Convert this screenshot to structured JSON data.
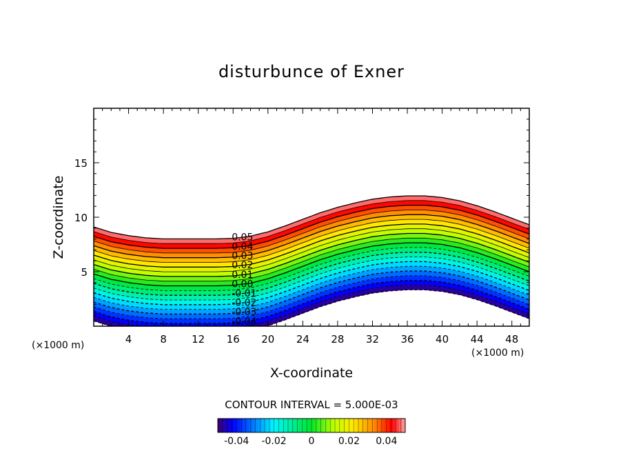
{
  "chart_data": {
    "type": "contour",
    "title": "disturbunce of Exner",
    "xlabel": "X-coordinate",
    "ylabel": "Z-coordinate",
    "x_unit_label": "(×1000 m)",
    "y_unit_label": "(×1000 m)",
    "xlim": [
      0,
      50
    ],
    "ylim": [
      0,
      20
    ],
    "x_ticks": [
      4,
      8,
      12,
      16,
      20,
      24,
      28,
      32,
      36,
      40,
      44,
      48
    ],
    "y_ticks": [
      5,
      10,
      15
    ],
    "contour_interval_text": "CONTOUR INTERVAL = 5.000E-03",
    "contour_interval": 0.005,
    "levels": [
      -0.05,
      -0.045,
      -0.04,
      -0.035,
      -0.03,
      -0.025,
      -0.02,
      -0.015,
      -0.01,
      -0.005,
      0.0,
      0.005,
      0.01,
      0.015,
      0.02,
      0.025,
      0.03,
      0.035,
      0.04,
      0.045,
      0.05
    ],
    "contour_labels": [
      "0.05",
      "0.04",
      "0.03",
      "0.02",
      "0.01",
      "0.00",
      "-0.01",
      "-0.02",
      "-0.03",
      "-0.04"
    ],
    "contour_label_x": 17.5,
    "field": {
      "zero_level_height_at_x": [
        [
          0,
          4.8
        ],
        [
          2,
          4.3
        ],
        [
          4,
          4.0
        ],
        [
          6,
          3.8
        ],
        [
          8,
          3.7
        ],
        [
          10,
          3.7
        ],
        [
          12,
          3.7
        ],
        [
          14,
          3.7
        ],
        [
          16,
          3.75
        ],
        [
          18,
          3.95
        ],
        [
          20,
          4.35
        ],
        [
          22,
          4.9
        ],
        [
          24,
          5.5
        ],
        [
          26,
          6.1
        ],
        [
          28,
          6.6
        ],
        [
          30,
          7.0
        ],
        [
          32,
          7.35
        ],
        [
          34,
          7.55
        ],
        [
          36,
          7.65
        ],
        [
          38,
          7.65
        ],
        [
          40,
          7.5
        ],
        [
          42,
          7.2
        ],
        [
          44,
          6.75
        ],
        [
          46,
          6.2
        ],
        [
          48,
          5.6
        ],
        [
          50,
          5.0
        ]
      ],
      "vertical_gradient_per_km": -0.0116,
      "top_value": 0.05,
      "bottom_value": -0.05
    },
    "colorbar": {
      "min": -0.05,
      "max": 0.05,
      "tick_labels": [
        "-0.04",
        "-0.02",
        "0",
        "0.02",
        "0.04"
      ],
      "tick_values": [
        -0.04,
        -0.02,
        0,
        0.02,
        0.04
      ]
    },
    "negative_contours_dashed": true
  }
}
